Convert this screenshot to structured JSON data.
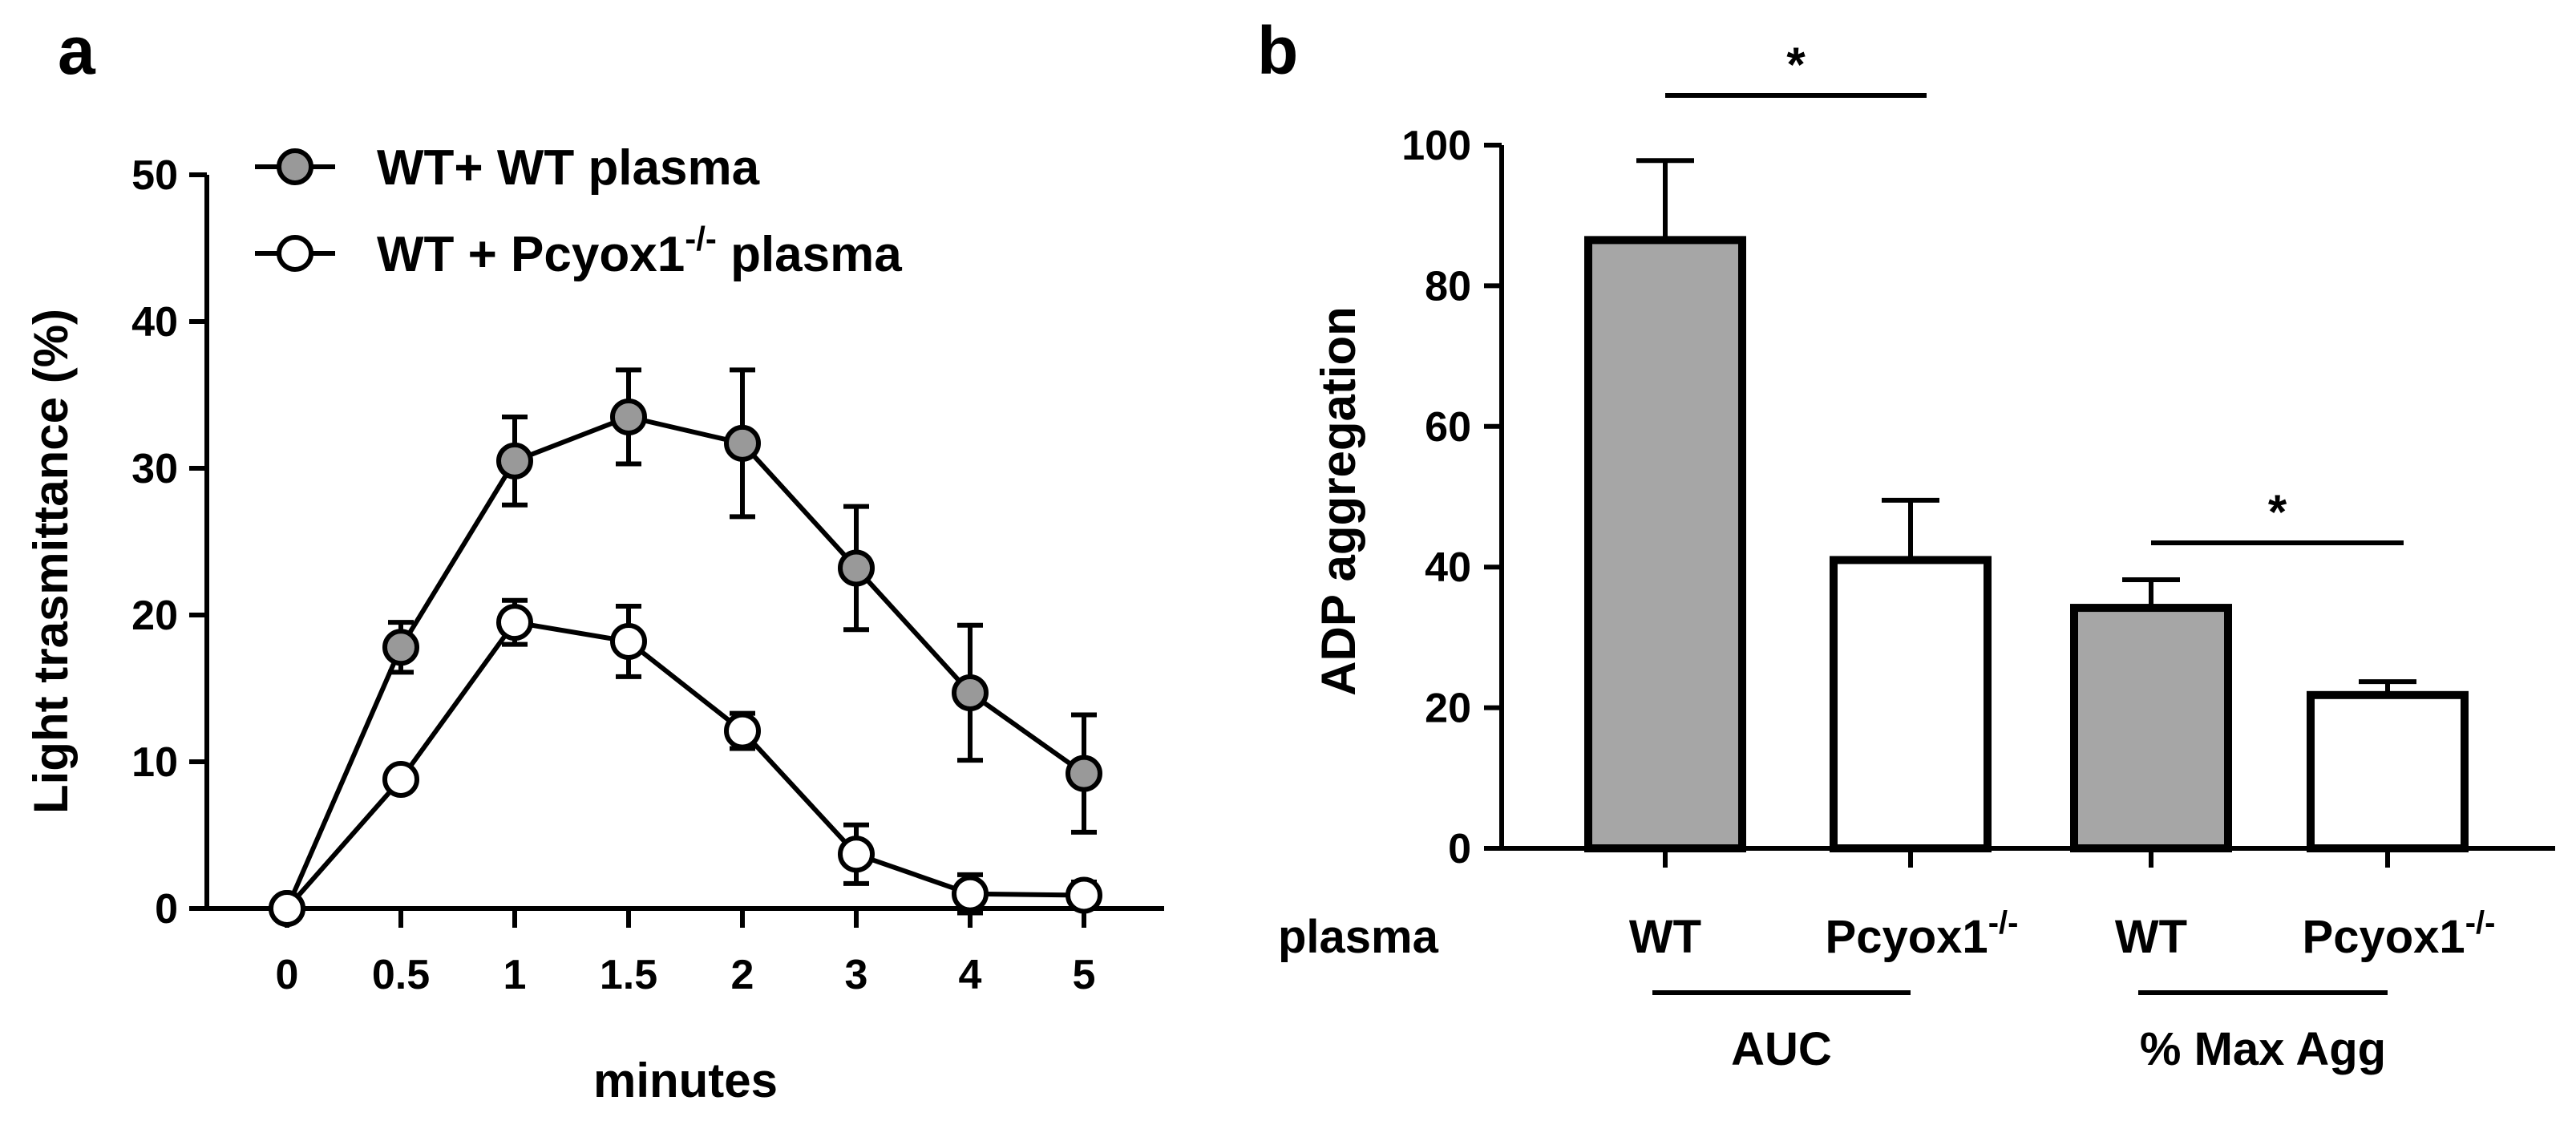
{
  "chart_data": [
    {
      "panel": "a",
      "type": "line",
      "xlabel": "minutes",
      "ylabel": "Light trasmittance (%)",
      "ylim": [
        0,
        50
      ],
      "yticks": [
        0,
        10,
        20,
        30,
        40,
        50
      ],
      "categories": [
        "0",
        "0.5",
        "1",
        "1.5",
        "2",
        "3",
        "4",
        "5"
      ],
      "series": [
        {
          "name": "WT+ WT plasma",
          "marker_fill": "#999999",
          "values": [
            0,
            17.8,
            30.5,
            33.5,
            31.7,
            23.2,
            14.7,
            9.2
          ],
          "errors": [
            0,
            1.7,
            3.0,
            3.2,
            5.0,
            4.2,
            4.6,
            4.0
          ]
        },
        {
          "name_base": "WT + Pcyox1",
          "name_sup": "-/-",
          "name_tail": " plasma",
          "marker_fill": "#ffffff",
          "values": [
            0,
            8.8,
            19.5,
            18.2,
            12.1,
            3.7,
            1.0,
            0.9
          ],
          "errors": [
            0,
            0,
            1.5,
            2.4,
            1.2,
            2.0,
            1.3,
            0.9
          ]
        }
      ]
    },
    {
      "panel": "b",
      "type": "bar",
      "ylabel": "ADP aggregation",
      "ylim": [
        0,
        100
      ],
      "yticks": [
        0,
        20,
        40,
        60,
        80,
        100
      ],
      "row_label": "plasma",
      "bars": [
        {
          "label": "WT",
          "sup": "",
          "value": 86.5,
          "error": 11.3,
          "fill": "#a6a6a6"
        },
        {
          "label": "Pcyox1",
          "sup": "-/-",
          "value": 41.0,
          "error": 8.5,
          "fill": "#ffffff"
        },
        {
          "label": "WT",
          "sup": "",
          "value": 34.2,
          "error": 4.0,
          "fill": "#a6a6a6"
        },
        {
          "label": "Pcyox1",
          "sup": "-/-",
          "value": 21.8,
          "error": 1.9,
          "fill": "#ffffff"
        }
      ],
      "groups": [
        {
          "label": "AUC",
          "bars": [
            0,
            1
          ]
        },
        {
          "label": "% Max Agg",
          "bars": [
            2,
            3
          ]
        }
      ],
      "significance": [
        {
          "bars": [
            0,
            1
          ],
          "label": "*"
        },
        {
          "bars": [
            2,
            3
          ],
          "label": "*"
        }
      ]
    }
  ]
}
